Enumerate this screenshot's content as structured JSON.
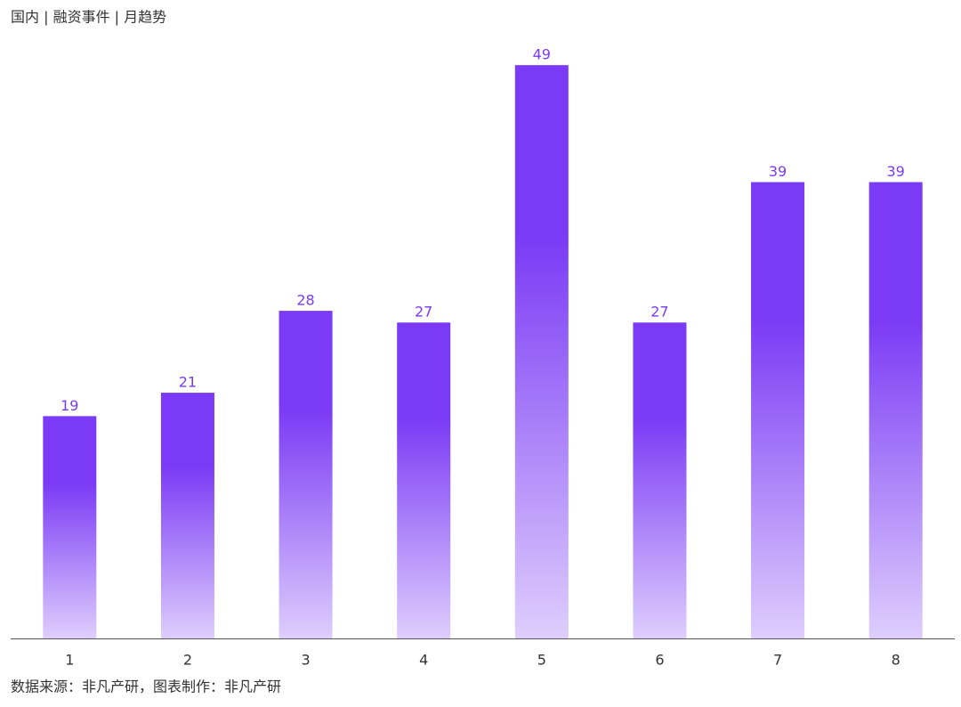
{
  "chart_data": {
    "type": "bar",
    "title": "国内 | 融资事件 | 月趋势",
    "categories": [
      "1",
      "2",
      "3",
      "4",
      "5",
      "6",
      "7",
      "8"
    ],
    "values": [
      19,
      21,
      28,
      27,
      49,
      27,
      39,
      39
    ],
    "color": "#7b3af5",
    "ylim": [
      0,
      50
    ],
    "source": "数据来源：非凡产研，图表制作：非凡产研"
  }
}
